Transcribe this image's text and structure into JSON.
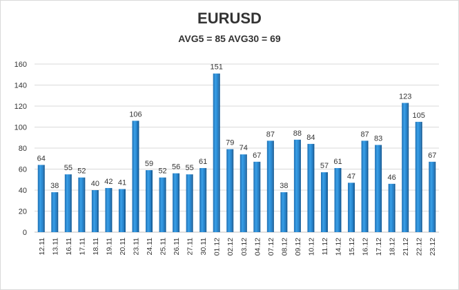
{
  "chart_data": {
    "type": "bar",
    "title": "EURUSD",
    "subtitle": "AVG5 = 85 AVG30 = 69",
    "xlabel": "",
    "ylabel": "",
    "ylim": [
      0,
      160
    ],
    "yticks": [
      0,
      20,
      40,
      60,
      80,
      100,
      120,
      140,
      160
    ],
    "grid": true,
    "legend": "none",
    "bar_color": "#2e8fd6",
    "categories": [
      "12.11",
      "13.11",
      "16.11",
      "17.11",
      "18.11",
      "19.11",
      "20.11",
      "23.11",
      "24.11",
      "25.11",
      "26.11",
      "27.11",
      "30.11",
      "01.12",
      "02.12",
      "03.12",
      "04.12",
      "07.12",
      "08.12",
      "09.12",
      "10.12",
      "11.12",
      "14.12",
      "15.12",
      "16.12",
      "17.12",
      "18.12",
      "21.12",
      "22.12",
      "23.12"
    ],
    "values": [
      64,
      38,
      55,
      52,
      40,
      42,
      41,
      106,
      59,
      52,
      56,
      55,
      61,
      151,
      79,
      74,
      67,
      87,
      38,
      88,
      84,
      57,
      61,
      47,
      87,
      83,
      46,
      123,
      105,
      67
    ]
  }
}
